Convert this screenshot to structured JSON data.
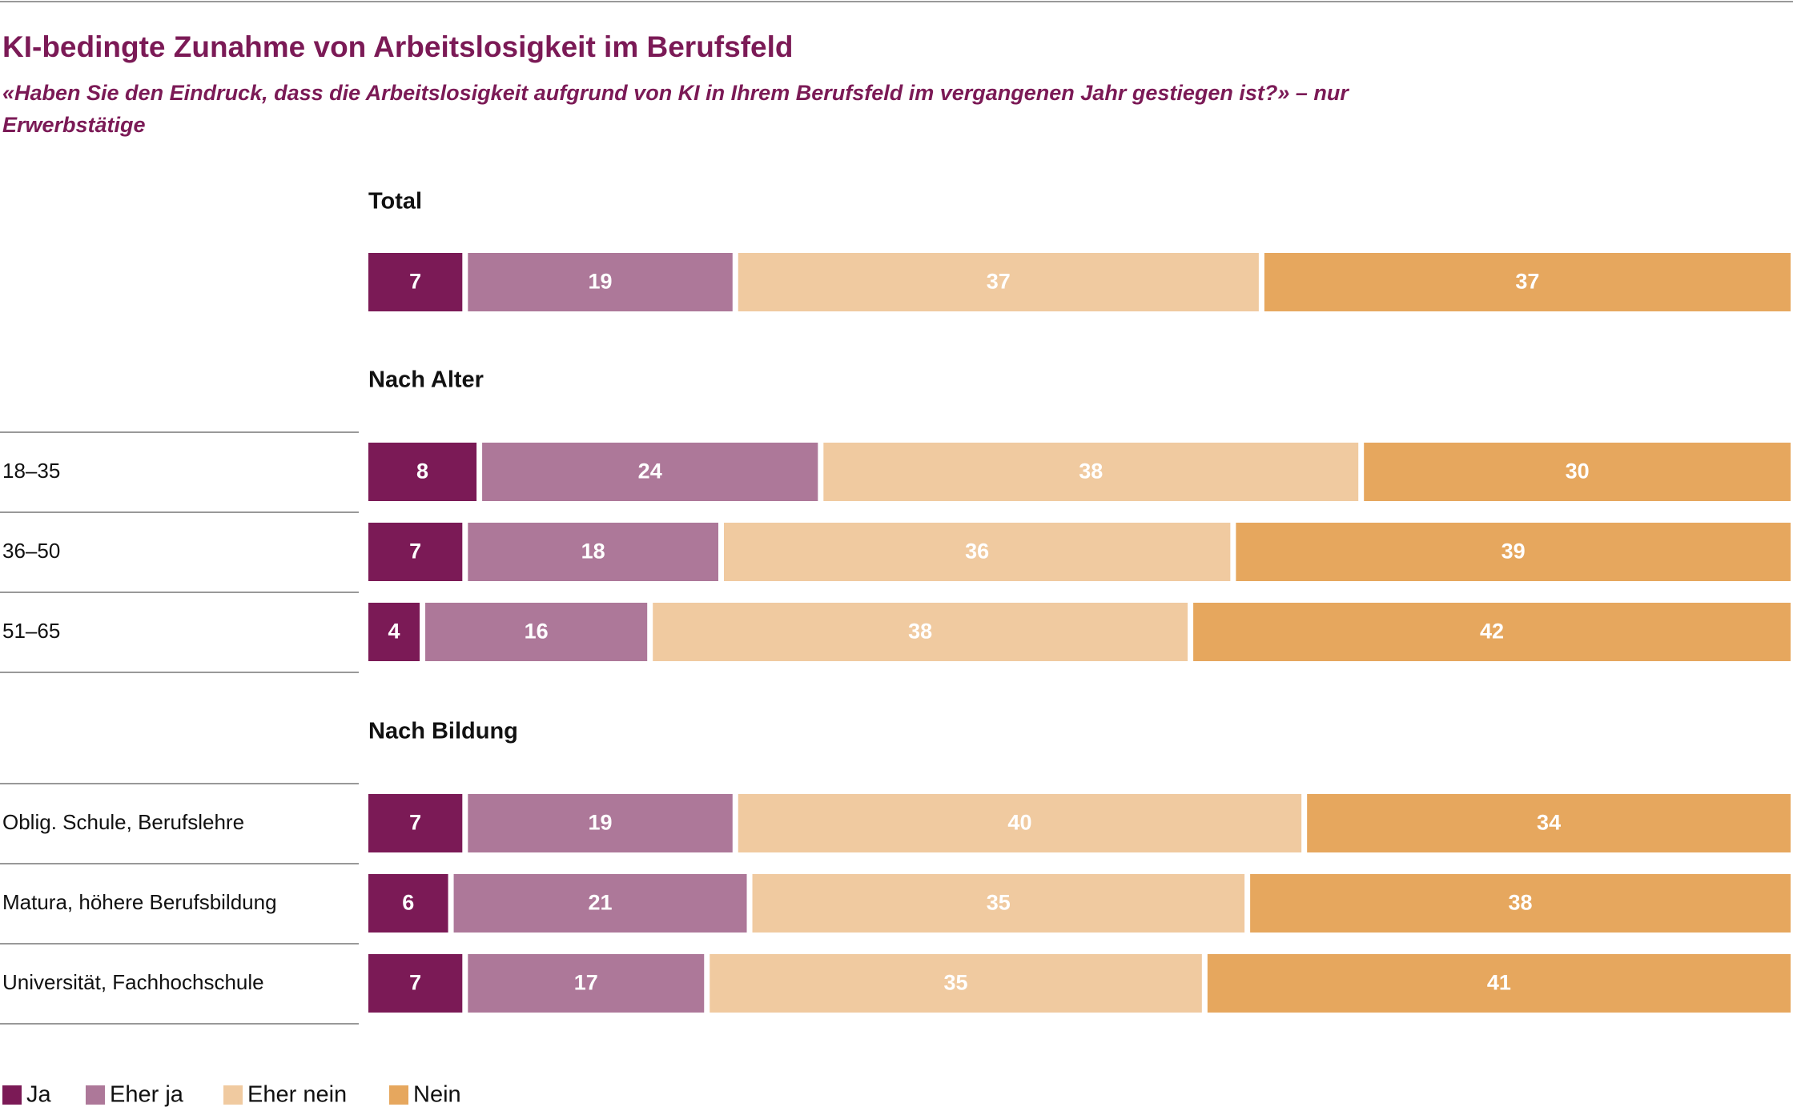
{
  "title": "KI-bedingte Zunahme von Arbeitslosigkeit im Berufsfeld",
  "subtitle": "«Haben Sie den Eindruck, dass die Arbeitslosigkeit aufgrund von KI in Ihrem Berufsfeld im vergangenen Jahr gestiegen ist?» – nur Erwerbstätige",
  "chart_data": [
    {
      "type": "bar",
      "orientation": "horizontal",
      "stacked": true,
      "title": "Total",
      "xlim": [
        0,
        100
      ],
      "categories": [
        null
      ],
      "series": [
        {
          "name": "Ja",
          "color": "#7b1a56",
          "values": [
            7
          ]
        },
        {
          "name": "Eher ja",
          "color": "#ad7899",
          "values": [
            19
          ]
        },
        {
          "name": "Eher nein",
          "color": "#f0caa0",
          "values": [
            37
          ]
        },
        {
          "name": "Nein",
          "color": "#e6a75e",
          "values": [
            37
          ]
        }
      ]
    },
    {
      "type": "bar",
      "orientation": "horizontal",
      "stacked": true,
      "title": "Nach Alter",
      "xlim": [
        0,
        100
      ],
      "categories": [
        "18–35",
        "36–50",
        "51–65"
      ],
      "series": [
        {
          "name": "Ja",
          "color": "#7b1a56",
          "values": [
            8,
            7,
            4
          ]
        },
        {
          "name": "Eher ja",
          "color": "#ad7899",
          "values": [
            24,
            18,
            16
          ]
        },
        {
          "name": "Eher nein",
          "color": "#f0caa0",
          "values": [
            38,
            36,
            38
          ]
        },
        {
          "name": "Nein",
          "color": "#e6a75e",
          "values": [
            30,
            39,
            42
          ]
        }
      ]
    },
    {
      "type": "bar",
      "orientation": "horizontal",
      "stacked": true,
      "title": "Nach Bildung",
      "xlim": [
        0,
        100
      ],
      "categories": [
        "Oblig. Schule, Berufslehre",
        "Matura, höhere Berufsbildung",
        "Universität, Fachhochschule"
      ],
      "series": [
        {
          "name": "Ja",
          "color": "#7b1a56",
          "values": [
            7,
            6,
            7
          ]
        },
        {
          "name": "Eher ja",
          "color": "#ad7899",
          "values": [
            19,
            21,
            17
          ]
        },
        {
          "name": "Eher nein",
          "color": "#f0caa0",
          "values": [
            40,
            35,
            35
          ]
        },
        {
          "name": "Nein",
          "color": "#e6a75e",
          "values": [
            34,
            38,
            41
          ]
        }
      ]
    }
  ]
}
